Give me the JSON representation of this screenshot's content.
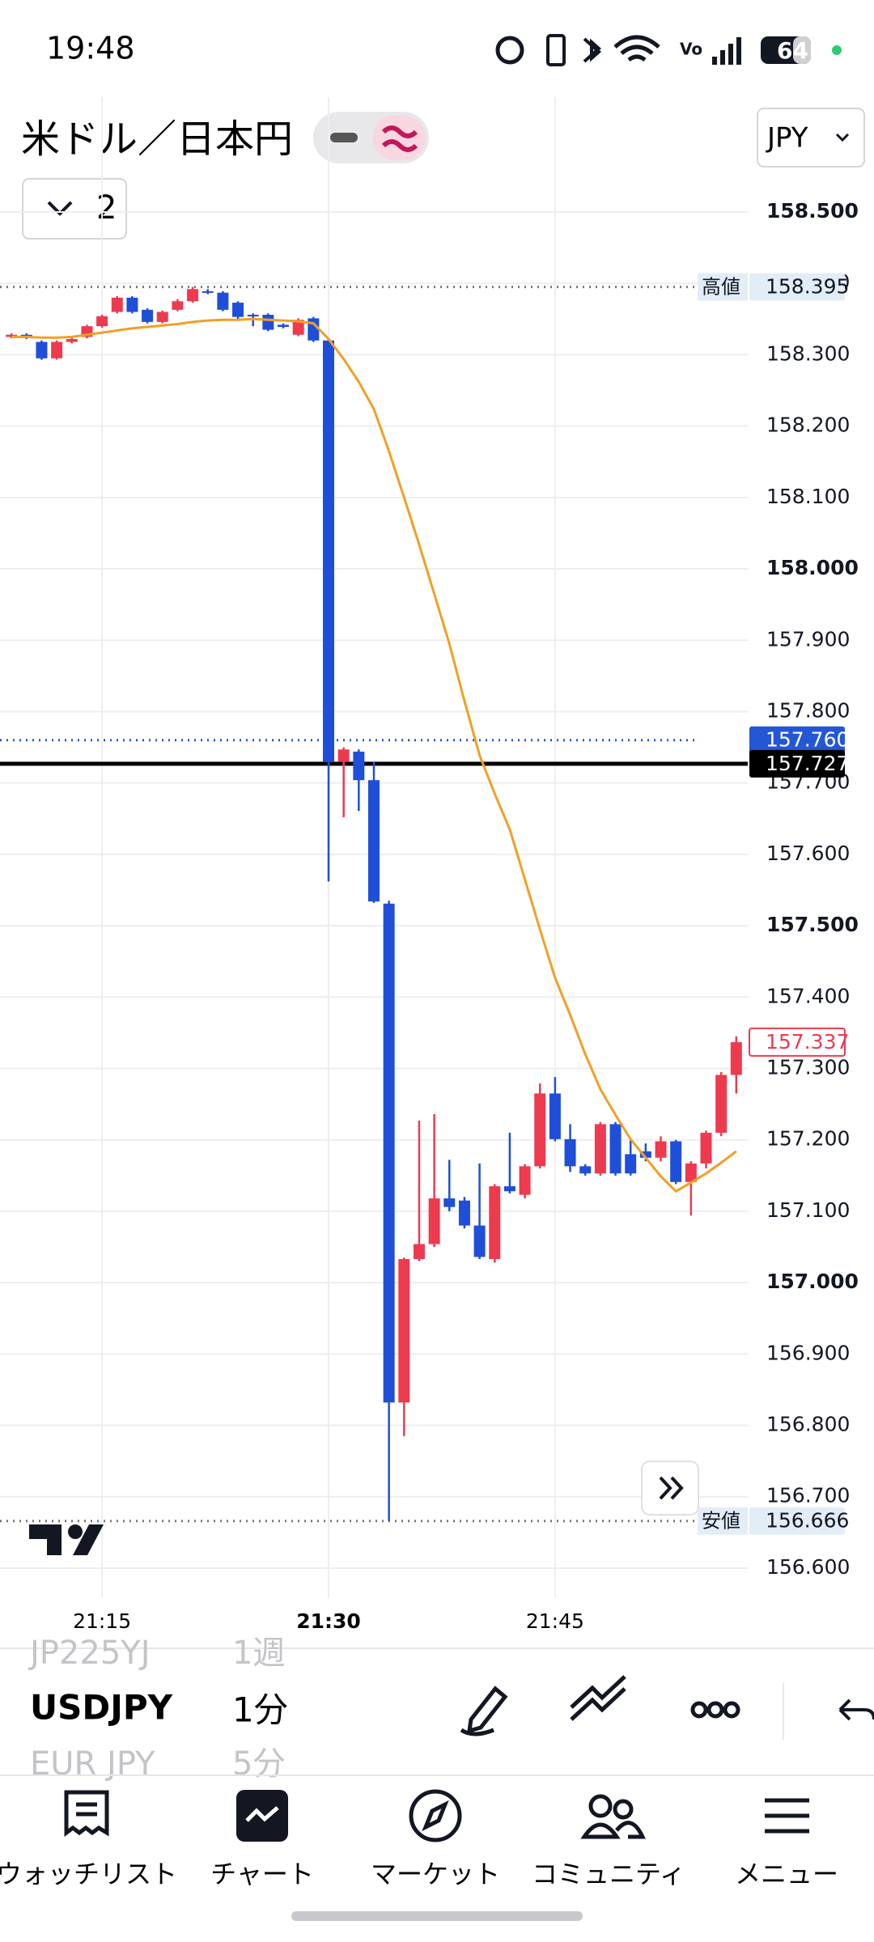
{
  "status_bar": {
    "time": "19:48",
    "battery": "64"
  },
  "header": {
    "title": "米ドル／日本円",
    "currency": "JPY",
    "count": "2"
  },
  "chart_data": {
    "type": "candlestick",
    "x": [
      "21:09",
      "21:10",
      "21:11",
      "21:12",
      "21:13",
      "21:14",
      "21:15",
      "21:16",
      "21:17",
      "21:18",
      "21:19",
      "21:20",
      "21:21",
      "21:22",
      "21:23",
      "21:24",
      "21:25",
      "21:26",
      "21:27",
      "21:28",
      "21:29",
      "21:30",
      "21:31",
      "21:32",
      "21:33",
      "21:34",
      "21:35",
      "21:36",
      "21:37",
      "21:38",
      "21:39",
      "21:40",
      "21:41",
      "21:42",
      "21:43",
      "21:44",
      "21:45",
      "21:46",
      "21:47",
      "21:48",
      "21:49",
      "21:50",
      "21:51",
      "21:52",
      "21:53",
      "21:54",
      "21:55",
      "21:56",
      "21:57"
    ],
    "open": [
      158.325,
      158.328,
      158.318,
      158.295,
      158.318,
      158.325,
      158.34,
      158.36,
      158.38,
      158.363,
      158.346,
      158.363,
      158.375,
      158.389,
      158.387,
      158.373,
      158.356,
      158.356,
      158.342,
      158.328,
      158.351,
      158.32,
      157.73,
      157.744,
      157.704,
      157.531,
      156.832,
      157.033,
      157.054,
      157.118,
      157.115,
      157.08,
      157.033,
      157.135,
      157.123,
      157.163,
      157.265,
      157.201,
      157.163,
      157.153,
      157.222,
      157.18,
      157.184,
      157.175,
      157.198,
      157.141,
      157.167,
      157.21,
      157.291
    ],
    "high": [
      158.33,
      158.33,
      158.32,
      158.32,
      158.325,
      158.342,
      158.356,
      158.382,
      158.382,
      158.365,
      158.362,
      158.378,
      158.395,
      158.392,
      158.389,
      158.375,
      158.358,
      158.358,
      158.344,
      158.351,
      158.353,
      158.322,
      157.75,
      157.747,
      157.73,
      157.535,
      157.035,
      157.227,
      157.236,
      157.172,
      157.12,
      157.167,
      157.138,
      157.21,
      157.166,
      157.279,
      157.288,
      157.222,
      157.166,
      157.225,
      157.225,
      157.2,
      157.195,
      157.205,
      157.2,
      157.17,
      157.213,
      157.295,
      157.345
    ],
    "low": [
      158.323,
      158.322,
      158.293,
      158.293,
      158.316,
      158.323,
      158.338,
      158.358,
      158.358,
      158.344,
      158.344,
      158.361,
      158.373,
      158.385,
      158.361,
      158.35,
      158.34,
      158.333,
      158.337,
      158.326,
      158.318,
      157.562,
      157.652,
      157.661,
      157.532,
      156.666,
      156.785,
      157.03,
      157.05,
      157.1,
      157.076,
      157.033,
      157.028,
      157.125,
      157.118,
      157.16,
      157.198,
      157.155,
      157.15,
      157.15,
      157.15,
      157.15,
      157.17,
      157.17,
      157.138,
      157.094,
      157.16,
      157.205,
      157.265
    ],
    "close": [
      158.328,
      158.326,
      158.295,
      158.318,
      158.322,
      158.34,
      158.354,
      158.38,
      158.36,
      158.346,
      158.36,
      158.375,
      158.392,
      158.387,
      158.363,
      158.353,
      158.355,
      158.335,
      158.339,
      158.349,
      158.32,
      157.73,
      157.747,
      157.704,
      157.534,
      156.832,
      157.033,
      157.054,
      157.118,
      157.106,
      157.08,
      157.036,
      157.135,
      157.128,
      157.163,
      157.265,
      157.201,
      157.163,
      157.153,
      157.222,
      157.153,
      157.153,
      157.175,
      157.198,
      157.141,
      157.167,
      157.21,
      157.291,
      157.337
    ],
    "up_color": "#ee3a4f",
    "down_color": "#1f4fd8",
    "ma": {
      "color": "#f0a024",
      "values": [
        158.325,
        158.325,
        158.324,
        158.324,
        158.325,
        158.328,
        158.331,
        158.334,
        158.337,
        158.339,
        158.341,
        158.343,
        158.346,
        158.348,
        158.349,
        158.349,
        158.35,
        158.349,
        158.348,
        158.347,
        158.344,
        158.322,
        158.294,
        158.262,
        158.224,
        158.165,
        158.1,
        158.034,
        157.965,
        157.895,
        157.815,
        157.739,
        157.685,
        157.635,
        157.565,
        157.495,
        157.427,
        157.375,
        157.32,
        157.271,
        157.235,
        157.201,
        157.175,
        157.149,
        157.128,
        157.14,
        157.153,
        157.168,
        157.184
      ]
    },
    "ylim": [
      156.558,
      158.661
    ],
    "yticks": [
      {
        "value": 156.6,
        "label": "156.600"
      },
      {
        "value": 156.7,
        "label": "156.700"
      },
      {
        "value": 156.8,
        "label": "156.800"
      },
      {
        "value": 156.9,
        "label": "156.900"
      },
      {
        "value": 157,
        "label": "157.000"
      },
      {
        "value": 157.1,
        "label": "157.100"
      },
      {
        "value": 157.2,
        "label": "157.200"
      },
      {
        "value": 157.3,
        "label": "157.300"
      },
      {
        "value": 157.4,
        "label": "157.400"
      },
      {
        "value": 157.5,
        "label": "157.500"
      },
      {
        "value": 157.6,
        "label": "157.600"
      },
      {
        "value": 157.7,
        "label": "157.700"
      },
      {
        "value": 157.8,
        "label": "157.800"
      },
      {
        "value": 157.9,
        "label": "157.900"
      },
      {
        "value": 158,
        "label": "158.000"
      },
      {
        "value": 158.1,
        "label": "158.100"
      },
      {
        "value": 158.2,
        "label": "158.200"
      },
      {
        "value": 158.3,
        "label": "158.300"
      },
      {
        "value": 158.4,
        "label": "158.400"
      },
      {
        "value": 158.5,
        "label": "158.500"
      }
    ],
    "xticks": [
      "21:15",
      "21:30",
      "21:45"
    ],
    "grid": true,
    "price_markers": [
      {
        "text": "高値",
        "value": 158.395,
        "value_label": "158.395",
        "box_color": "#e3edf8",
        "text_color": "#131722",
        "line": "dotted",
        "outline": false
      },
      {
        "text": "安値",
        "value": 156.666,
        "value_label": "156.666",
        "box_color": "#e3edf8",
        "text_color": "#131722",
        "line": "dotted",
        "outline": false
      },
      {
        "value": 157.76,
        "value_label": "157.760",
        "box_color": "#2457d6",
        "text_color": "#ffffff",
        "line": "dotted",
        "outline": false
      },
      {
        "value": 157.727,
        "value_label": "157.727",
        "box_color": "#000000",
        "text_color": "#ffffff",
        "line": "solid",
        "outline": false
      },
      {
        "value": 157.337,
        "value_label": "157.337",
        "box_color": "#ffffff",
        "text_color": "#ee3a4f",
        "line": "none",
        "outline": true
      }
    ]
  },
  "toolbar": {
    "symbols": [
      "JP225YJ",
      "USDJPY",
      "EUR JPY"
    ],
    "intervals": [
      "1週",
      "1分",
      "5分"
    ]
  },
  "nav": {
    "items": [
      "ウォッチリスト",
      "チャート",
      "マーケット",
      "コミュニティ",
      "メニュー"
    ]
  }
}
